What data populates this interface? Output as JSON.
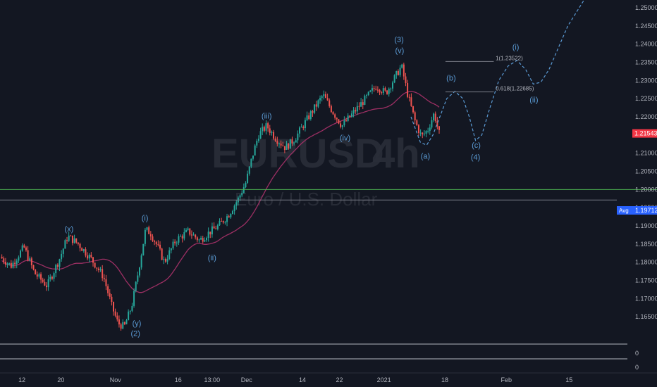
{
  "chart_data": {
    "type": "candlestick",
    "symbol": "EURUSD",
    "interval": "4h",
    "description": "Euro / U.S. Dollar",
    "y_range": [
      1.16,
      1.25
    ],
    "y_ticks": [
      "1.25000",
      "1.24500",
      "1.24000",
      "1.23500",
      "1.23000",
      "1.22500",
      "1.22000",
      "1.21500",
      "1.21000",
      "1.20500",
      "1.20000",
      "1.19500",
      "1.19000",
      "1.18500",
      "1.18000",
      "1.17500",
      "1.17000",
      "1.16500"
    ],
    "time_labels": [
      {
        "label": "12",
        "x": 0.035
      },
      {
        "label": "20",
        "x": 0.097
      },
      {
        "label": "Nov",
        "x": 0.184
      },
      {
        "label": "16",
        "x": 0.284
      },
      {
        "label": "13:00",
        "x": 0.338
      },
      {
        "label": "Dec",
        "x": 0.393
      },
      {
        "label": "14",
        "x": 0.482
      },
      {
        "label": "22",
        "x": 0.541
      },
      {
        "label": "2021",
        "x": 0.612
      },
      {
        "label": "18",
        "x": 0.709
      },
      {
        "label": "Feb",
        "x": 0.807
      },
      {
        "label": "15",
        "x": 0.907
      }
    ],
    "last_price": "1.21543",
    "last_price_color": "#f23645",
    "avg_label": "Avg",
    "avg_value": "1.19712",
    "avg_color": "#2962ff",
    "horizontal_level": 1.2,
    "horizontal_level_color": "#4caf50",
    "ma_color": "#9c2f63",
    "up_color": "#26a69a",
    "down_color": "#ef5350",
    "projection_color": "#5b9bd5",
    "fib_levels": [
      {
        "label": "1(1.23522)",
        "value": 1.23522
      },
      {
        "label": "0.618(1.22685)",
        "value": 1.22685
      }
    ],
    "wave_labels": [
      {
        "text": "(x)",
        "x": 0.11,
        "price": 1.1885
      },
      {
        "text": "(i)",
        "x": 0.231,
        "price": 1.1915
      },
      {
        "text": "(y)",
        "x": 0.218,
        "price": 1.1625
      },
      {
        "text": "(2)",
        "x": 0.216,
        "price": 1.1597
      },
      {
        "text": "(ii)",
        "x": 0.338,
        "price": 1.1805
      },
      {
        "text": "(iii)",
        "x": 0.425,
        "price": 1.2195
      },
      {
        "text": "(iv)",
        "x": 0.55,
        "price": 1.2135
      },
      {
        "text": "(3)",
        "x": 0.636,
        "price": 1.2405
      },
      {
        "text": "(v)",
        "x": 0.637,
        "price": 1.2375
      },
      {
        "text": "(a)",
        "x": 0.678,
        "price": 1.2085
      },
      {
        "text": "(b)",
        "x": 0.719,
        "price": 1.23
      },
      {
        "text": "(c)",
        "x": 0.759,
        "price": 1.2115
      },
      {
        "text": "(4)",
        "x": 0.758,
        "price": 1.2082
      },
      {
        "text": "(i)",
        "x": 0.822,
        "price": 1.2385
      },
      {
        "text": "(ii)",
        "x": 0.851,
        "price": 1.224
      }
    ],
    "lower_pane": {
      "label_1": "0",
      "label_2": "0"
    }
  }
}
